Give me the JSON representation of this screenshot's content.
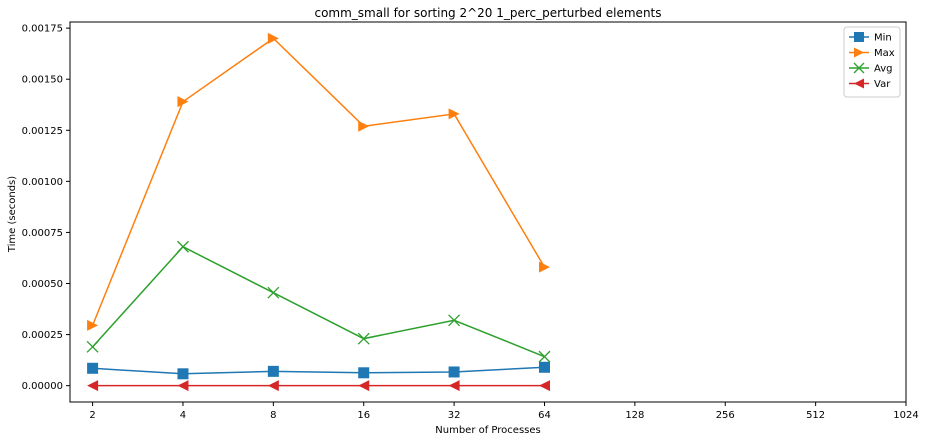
{
  "chart_data": {
    "type": "line",
    "title": "comm_small for sorting 2^20 1_perc_perturbed elements",
    "xlabel": "Number of Processes",
    "ylabel": "Time (seconds)",
    "x_scale": "log2",
    "x_ticks": [
      2,
      4,
      8,
      16,
      32,
      64,
      128,
      256,
      512,
      1024
    ],
    "x_tick_labels": [
      "2",
      "4",
      "8",
      "16",
      "32",
      "64",
      "128",
      "256",
      "512",
      "1024"
    ],
    "y_ticks": [
      0,
      0.00025,
      0.0005,
      0.00075,
      0.001,
      0.00125,
      0.0015,
      0.00175
    ],
    "y_tick_labels": [
      "0.00000",
      "0.00025",
      "0.00050",
      "0.00075",
      "0.00100",
      "0.00125",
      "0.00150",
      "0.00175"
    ],
    "ylim": [
      -8e-05,
      0.00178
    ],
    "xlim_log2": [
      0.75,
      10
    ],
    "grid": false,
    "legend_position": "top-right",
    "x": [
      2,
      4,
      8,
      16,
      32,
      64
    ],
    "series": [
      {
        "name": "Min",
        "color": "#1f77b4",
        "marker": "square",
        "values": [
          8.5e-05,
          5.8e-05,
          7e-05,
          6.3e-05,
          6.7e-05,
          9e-05
        ]
      },
      {
        "name": "Max",
        "color": "#ff7f0e",
        "marker": "triangle-right",
        "values": [
          0.000295,
          0.00139,
          0.0017,
          0.00127,
          0.00133,
          0.00058
        ]
      },
      {
        "name": "Avg",
        "color": "#2ca02c",
        "marker": "x",
        "values": [
          0.00019,
          0.00068,
          0.000455,
          0.00023,
          0.00032,
          0.000142
        ]
      },
      {
        "name": "Var",
        "color": "#d62728",
        "marker": "triangle-left",
        "values": [
          0.0,
          0.0,
          0.0,
          0.0,
          0.0,
          0.0
        ]
      }
    ]
  }
}
